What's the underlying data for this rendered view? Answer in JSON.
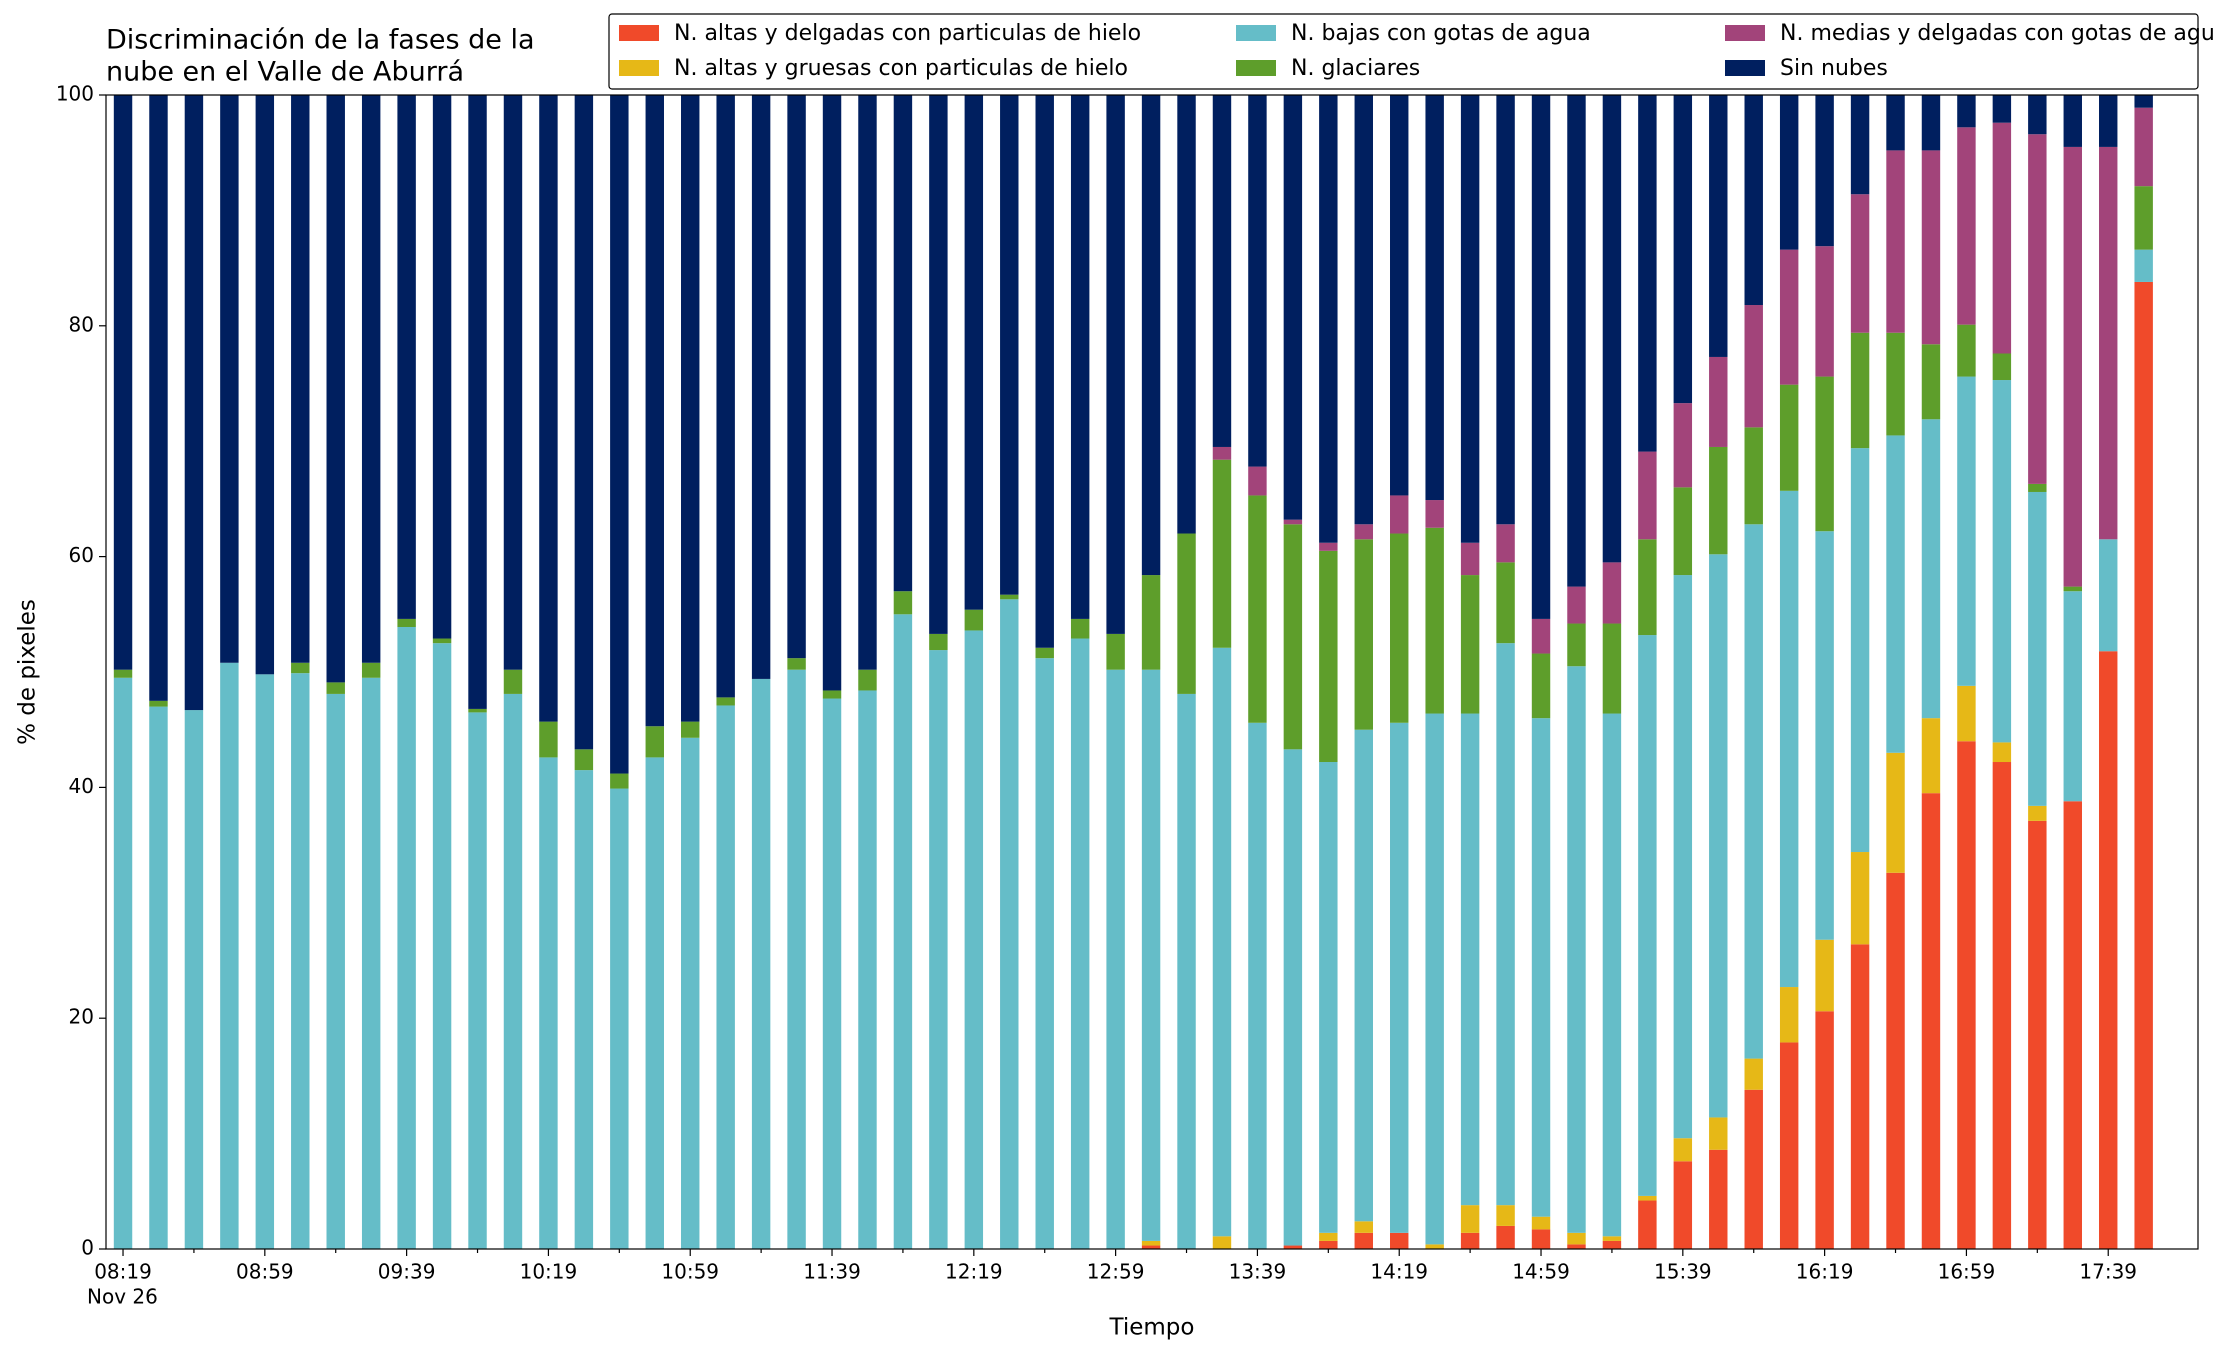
{
  "chart_data": {
    "type": "stacked_bar",
    "title": [
      "Discriminación de la fases de la",
      "nube en el Valle de Aburrá"
    ],
    "xlabel": "Tiempo",
    "ylabel": "% de pixeles",
    "date_label": "Nov 26",
    "categories": [
      "08:19",
      null,
      null,
      null,
      "08:59",
      null,
      null,
      null,
      "09:39",
      null,
      null,
      null,
      "10:19",
      null,
      null,
      null,
      "10:59",
      null,
      null,
      null,
      "11:39",
      null,
      null,
      null,
      "12:19",
      null,
      null,
      null,
      "12:59",
      null,
      null,
      null,
      "13:39",
      null,
      null,
      null,
      "14:19",
      null,
      null,
      null,
      "14:59",
      null,
      null,
      null,
      "15:39",
      null,
      null,
      null,
      "16:19",
      null,
      null,
      null,
      "16:59",
      null,
      null,
      null,
      "17:39",
      null
    ],
    "ylim": [
      0,
      100
    ],
    "yticks": [
      0,
      20,
      40,
      60,
      80,
      100
    ],
    "legend": "top-right",
    "series": [
      {
        "name": "N. altas y delgadas con particulas de hielo",
        "color": "#f04a2a",
        "values": [
          0,
          0,
          0,
          0,
          0,
          0,
          0,
          0,
          0,
          0,
          0,
          0,
          0,
          0,
          0,
          0,
          0,
          0,
          0,
          0,
          0,
          0,
          0,
          0,
          0,
          0,
          0,
          0,
          0,
          0.3,
          0,
          0,
          0,
          0.3,
          0.7,
          1.4,
          1.4,
          0,
          1.4,
          2,
          1.7,
          0.4,
          0.7,
          4.2,
          7.6,
          8.6,
          13.8,
          17.9,
          20.6,
          26.4,
          32.6,
          39.5,
          44,
          42.2,
          37.1,
          38.8,
          51.8,
          83.8
        ]
      },
      {
        "name": "N. altas y gruesas con particulas de hielo",
        "color": "#e6b817",
        "values": [
          0,
          0,
          0,
          0,
          0,
          0,
          0,
          0,
          0,
          0,
          0,
          0,
          0,
          0,
          0,
          0,
          0,
          0,
          0,
          0,
          0,
          0,
          0,
          0,
          0,
          0,
          0,
          0,
          0,
          0.4,
          0,
          1.1,
          0,
          0,
          0.7,
          1.0,
          0,
          0.4,
          2.4,
          1.8,
          1.1,
          1.0,
          0.4,
          0.4,
          2,
          2.8,
          2.7,
          4.8,
          6.2,
          8,
          10.4,
          6.5,
          4.8,
          1.7,
          1.3,
          0,
          0,
          0
        ]
      },
      {
        "name": "N. bajas con gotas de agua",
        "color": "#65bdc8",
        "values": [
          49.5,
          47,
          46.7,
          50.8,
          49.8,
          49.9,
          48.1,
          49.5,
          53.9,
          52.5,
          46.5,
          48.1,
          42.6,
          41.5,
          39.9,
          42.6,
          44.3,
          47.1,
          49.4,
          50.2,
          47.7,
          48.4,
          55,
          51.9,
          53.6,
          56.3,
          51.2,
          52.9,
          50.2,
          49.5,
          48.1,
          51,
          45.6,
          43,
          40.8,
          42.6,
          44.2,
          46,
          42.6,
          48.7,
          43.2,
          49.1,
          45.3,
          48.6,
          48.8,
          48.8,
          46.3,
          43,
          35.4,
          35,
          27.5,
          25.9,
          26.8,
          31.4,
          27.2,
          18.2,
          9.7,
          2.8
        ]
      },
      {
        "name": "N. glaciares",
        "color": "#5e9e2b",
        "values": [
          0.7,
          0.5,
          0,
          0,
          0,
          0.9,
          1.0,
          1.3,
          0.7,
          0.4,
          0.3,
          2.1,
          3.1,
          1.8,
          1.3,
          2.7,
          1.4,
          0.7,
          0,
          1.0,
          0.7,
          1.8,
          2,
          1.4,
          1.8,
          0.4,
          0.9,
          1.7,
          3.1,
          8.2,
          13.9,
          16.3,
          19.7,
          19.5,
          18.3,
          16.5,
          16.4,
          16.1,
          12,
          7,
          5.6,
          3.7,
          7.8,
          8.3,
          7.6,
          9.3,
          8.4,
          9.2,
          13.4,
          10,
          8.9,
          6.5,
          4.5,
          2.3,
          0.7,
          0.4,
          0,
          5.5
        ]
      },
      {
        "name": "N. medias y delgadas con gotas de agua",
        "color": "#a2447a",
        "values": [
          0,
          0,
          0,
          0,
          0,
          0,
          0,
          0,
          0,
          0,
          0,
          0,
          0,
          0,
          0,
          0,
          0,
          0,
          0,
          0,
          0,
          0,
          0,
          0,
          0,
          0,
          0,
          0,
          0,
          0,
          0,
          1.1,
          2.5,
          0.4,
          0.7,
          1.3,
          3.3,
          2.4,
          2.8,
          3.3,
          3,
          3.2,
          5.3,
          7.6,
          7.3,
          7.8,
          10.6,
          11.7,
          11.3,
          12,
          15.8,
          16.8,
          17.1,
          20,
          30.3,
          38.1,
          34,
          6.8
        ]
      },
      {
        "name": "Sin nubes",
        "color": "#001f5f",
        "values": [
          49.8,
          52.5,
          53.3,
          49.2,
          50.2,
          49.2,
          50.9,
          49.2,
          45.4,
          47.1,
          53.2,
          49.8,
          54.3,
          56.7,
          58.8,
          54.7,
          54.3,
          52.2,
          50.6,
          48.8,
          51.6,
          49.8,
          43,
          46.7,
          44.6,
          43.3,
          47.9,
          45.4,
          46.7,
          41.6,
          38,
          30.5,
          32.2,
          36.8,
          38.8,
          37.2,
          34.7,
          35.1,
          38.8,
          37.2,
          45.4,
          42.6,
          40.5,
          30.9,
          26.7,
          22.7,
          18.2,
          13.4,
          13.1,
          8.6,
          4.8,
          4.8,
          2.8,
          2.4,
          3.4,
          4.5,
          4.5,
          1.1
        ]
      }
    ]
  }
}
